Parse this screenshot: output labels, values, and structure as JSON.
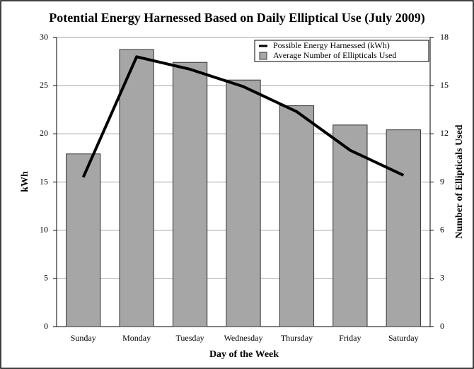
{
  "chart_data": {
    "type": "bar_line",
    "title": "Potential Energy Harnessed Based on Daily Elliptical Use (July 2009)",
    "x_label": "Day of the Week",
    "y_label": "kWh",
    "y2_label": "Number of Ellipticals Used",
    "categories": [
      "Sunday",
      "Monday",
      "Tuesday",
      "Wednesday",
      "Thursday",
      "Friday",
      "Saturday"
    ],
    "series": [
      {
        "name": "Possible Energy Harnessed (kWh)",
        "type": "line",
        "color": "#000000",
        "values": [
          15.5,
          28.0,
          26.7,
          24.9,
          22.3,
          18.3,
          15.7
        ]
      },
      {
        "name": "Average Number of Ellipticals Used",
        "type": "bar",
        "axis": "y2",
        "color": "#a6a6a6",
        "values": [
          10.75,
          17.25,
          16.45,
          15.35,
          13.75,
          12.55,
          12.25
        ]
      }
    ],
    "ylim": [
      0,
      30
    ],
    "yticks": [
      0,
      5,
      10,
      15,
      20,
      25,
      30
    ],
    "y2lim": [
      0,
      18
    ],
    "y2ticks": [
      0,
      3,
      6,
      9,
      12,
      15,
      18
    ],
    "grid": true,
    "legend": "upper right"
  }
}
